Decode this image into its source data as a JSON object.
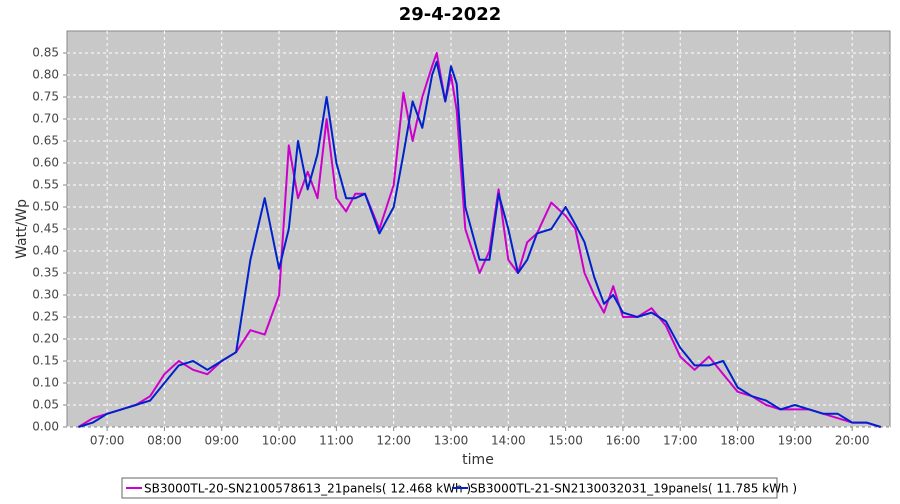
{
  "chart_data": {
    "type": "line",
    "title": "29-4-2022",
    "x_label": "time",
    "y_label": "Watt/Wp",
    "x": [
      6.5,
      6.75,
      7,
      7.25,
      7.5,
      7.75,
      8,
      8.25,
      8.5,
      8.75,
      9,
      9.25,
      9.5,
      9.75,
      10,
      10.17,
      10.33,
      10.5,
      10.67,
      10.83,
      11,
      11.17,
      11.33,
      11.5,
      11.75,
      12,
      12.17,
      12.33,
      12.5,
      12.67,
      12.75,
      12.9,
      13,
      13.1,
      13.25,
      13.5,
      13.67,
      13.83,
      14,
      14.17,
      14.33,
      14.5,
      14.75,
      15,
      15.17,
      15.33,
      15.5,
      15.67,
      15.83,
      16,
      16.25,
      16.5,
      16.75,
      17,
      17.25,
      17.5,
      17.75,
      18,
      18.25,
      18.5,
      18.75,
      19,
      19.25,
      19.5,
      19.75,
      20,
      20.25,
      20.5
    ],
    "series": [
      {
        "name": "SB3000TL-20-SN2100578613_21panels( 12.468 kWh )",
        "color": "#cc00cc",
        "values": [
          0,
          0.02,
          0.03,
          0.04,
          0.05,
          0.07,
          0.12,
          0.15,
          0.13,
          0.12,
          0.15,
          0.17,
          0.22,
          0.21,
          0.3,
          0.64,
          0.52,
          0.58,
          0.52,
          0.7,
          0.52,
          0.49,
          0.53,
          0.53,
          0.45,
          0.55,
          0.76,
          0.65,
          0.75,
          0.82,
          0.85,
          0.74,
          0.8,
          0.72,
          0.45,
          0.35,
          0.4,
          0.54,
          0.38,
          0.35,
          0.42,
          0.44,
          0.51,
          0.48,
          0.45,
          0.35,
          0.3,
          0.26,
          0.32,
          0.25,
          0.25,
          0.27,
          0.23,
          0.16,
          0.13,
          0.16,
          0.12,
          0.08,
          0.07,
          0.05,
          0.04,
          0.04,
          0.04,
          0.03,
          0.02,
          0.01,
          0.01,
          0
        ]
      },
      {
        "name": "SB3000TL-21-SN2130032031_19panels( 11.785 kWh )",
        "color": "#0022cc",
        "values": [
          0,
          0.01,
          0.03,
          0.04,
          0.05,
          0.06,
          0.1,
          0.14,
          0.15,
          0.13,
          0.15,
          0.17,
          0.38,
          0.52,
          0.36,
          0.45,
          0.65,
          0.54,
          0.62,
          0.75,
          0.6,
          0.52,
          0.52,
          0.53,
          0.44,
          0.5,
          0.62,
          0.74,
          0.68,
          0.8,
          0.83,
          0.74,
          0.82,
          0.78,
          0.5,
          0.38,
          0.38,
          0.53,
          0.45,
          0.35,
          0.38,
          0.44,
          0.45,
          0.5,
          0.46,
          0.42,
          0.34,
          0.28,
          0.3,
          0.26,
          0.25,
          0.26,
          0.24,
          0.18,
          0.14,
          0.14,
          0.15,
          0.09,
          0.07,
          0.06,
          0.04,
          0.05,
          0.04,
          0.03,
          0.03,
          0.01,
          0.01,
          0
        ]
      }
    ],
    "xlim": [
      6.3,
      20.66
    ],
    "xticks": [
      {
        "value": 7,
        "label": "07:00"
      },
      {
        "value": 8,
        "label": "08:00"
      },
      {
        "value": 9,
        "label": "09:00"
      },
      {
        "value": 10,
        "label": "10:00"
      },
      {
        "value": 11,
        "label": "11:00"
      },
      {
        "value": 12,
        "label": "12:00"
      },
      {
        "value": 13,
        "label": "13:00"
      },
      {
        "value": 14,
        "label": "14:00"
      },
      {
        "value": 15,
        "label": "15:00"
      },
      {
        "value": 16,
        "label": "16:00"
      },
      {
        "value": 17,
        "label": "17:00"
      },
      {
        "value": 18,
        "label": "18:00"
      },
      {
        "value": 19,
        "label": "19:00"
      },
      {
        "value": 20,
        "label": "20:00"
      }
    ],
    "ylim": [
      0,
      0.9
    ],
    "yticks": [
      {
        "value": 0,
        "label": "0.00"
      },
      0.05,
      {
        "value": 0.1,
        "label": "0.10"
      },
      0.15,
      {
        "value": 0.2,
        "label": "0.20"
      },
      0.25,
      {
        "value": 0.3,
        "label": "0.30"
      },
      0.35,
      {
        "value": 0.4,
        "label": "0.40"
      },
      0.45,
      {
        "value": 0.5,
        "label": "0.50"
      },
      0.55,
      {
        "value": 0.6,
        "label": "0.60"
      },
      0.65,
      {
        "value": 0.7,
        "label": "0.70"
      },
      0.75,
      {
        "value": 0.8,
        "label": "0.80"
      },
      0.85
    ],
    "grid": true,
    "legend": "bottom"
  }
}
